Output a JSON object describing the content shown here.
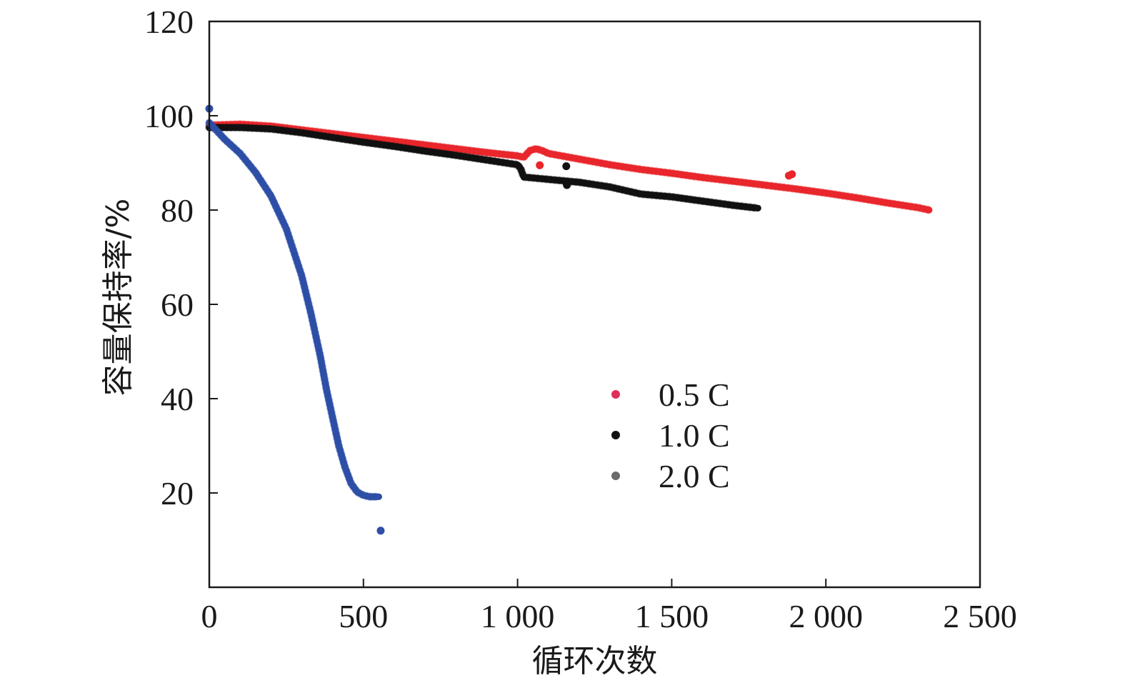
{
  "chart_data": {
    "type": "scatter",
    "xlabel": "循环次数",
    "ylabel": "容量保持率/%",
    "xlim": [
      0,
      2500
    ],
    "ylim": [
      0,
      120
    ],
    "x_ticks": [
      0,
      500,
      1000,
      1500,
      2000,
      2500
    ],
    "x_tick_labels": [
      "0",
      "500",
      "1 000",
      "1 500",
      "2 000",
      "2 500"
    ],
    "y_ticks": [
      20,
      40,
      60,
      80,
      100,
      120
    ],
    "y_tick_labels": [
      "20",
      "40",
      "60",
      "80",
      "100",
      "120"
    ],
    "grid": false,
    "legend": {
      "position": "center-right"
    },
    "series": [
      {
        "name": "0.5 C",
        "color": "#e8262b",
        "legend_color": "#e0305a",
        "points": [
          [
            0,
            98
          ],
          [
            100,
            98.2
          ],
          [
            200,
            97.8
          ],
          [
            300,
            97
          ],
          [
            400,
            96.2
          ],
          [
            500,
            95.4
          ],
          [
            600,
            94.6
          ],
          [
            700,
            93.8
          ],
          [
            800,
            93
          ],
          [
            900,
            92.2
          ],
          [
            1000,
            91.5
          ],
          [
            1020,
            91.2
          ],
          [
            1040,
            92.6
          ],
          [
            1060,
            93
          ],
          [
            1080,
            92.6
          ],
          [
            1100,
            92
          ],
          [
            1200,
            90.8
          ],
          [
            1300,
            89.6
          ],
          [
            1400,
            88.6
          ],
          [
            1500,
            87.8
          ],
          [
            1600,
            86.9
          ],
          [
            1700,
            86.1
          ],
          [
            1800,
            85.3
          ],
          [
            1900,
            84.5
          ],
          [
            2000,
            83.6
          ],
          [
            2100,
            82.6
          ],
          [
            2200,
            81.5
          ],
          [
            2300,
            80.5
          ],
          [
            2335,
            80
          ]
        ],
        "outliers": [
          [
            1072,
            89.5
          ],
          [
            1880,
            87.3
          ],
          [
            1890,
            87.6
          ]
        ]
      },
      {
        "name": "1.0 C",
        "color": "#111111",
        "legend_color": "#111111",
        "points": [
          [
            0,
            97.5
          ],
          [
            100,
            97.5
          ],
          [
            200,
            97.2
          ],
          [
            300,
            96.4
          ],
          [
            400,
            95.4
          ],
          [
            500,
            94.4
          ],
          [
            600,
            93.5
          ],
          [
            700,
            92.5
          ],
          [
            800,
            91.6
          ],
          [
            900,
            90.6
          ],
          [
            1000,
            89.6
          ],
          [
            1010,
            88.8
          ],
          [
            1020,
            87
          ],
          [
            1100,
            86.5
          ],
          [
            1200,
            85.9
          ],
          [
            1300,
            84.9
          ],
          [
            1400,
            83.4
          ],
          [
            1500,
            82.8
          ],
          [
            1600,
            81.9
          ],
          [
            1700,
            81
          ],
          [
            1780,
            80.4
          ]
        ],
        "outliers": [
          [
            1158,
            89.3
          ],
          [
            1160,
            85.3
          ]
        ]
      },
      {
        "name": "2.0 C",
        "color": "#2e4fa6",
        "legend_color": "#6a6a6a",
        "points": [
          [
            0,
            98.5
          ],
          [
            50,
            95
          ],
          [
            100,
            92
          ],
          [
            150,
            88
          ],
          [
            200,
            83
          ],
          [
            250,
            76
          ],
          [
            300,
            66
          ],
          [
            330,
            58
          ],
          [
            360,
            49
          ],
          [
            380,
            42
          ],
          [
            400,
            36
          ],
          [
            420,
            30
          ],
          [
            440,
            25.5
          ],
          [
            460,
            22
          ],
          [
            480,
            20.2
          ],
          [
            500,
            19.5
          ],
          [
            520,
            19.2
          ],
          [
            550,
            19.2
          ]
        ],
        "outliers": [
          [
            556,
            12
          ],
          [
            0,
            101.5
          ]
        ]
      }
    ]
  }
}
